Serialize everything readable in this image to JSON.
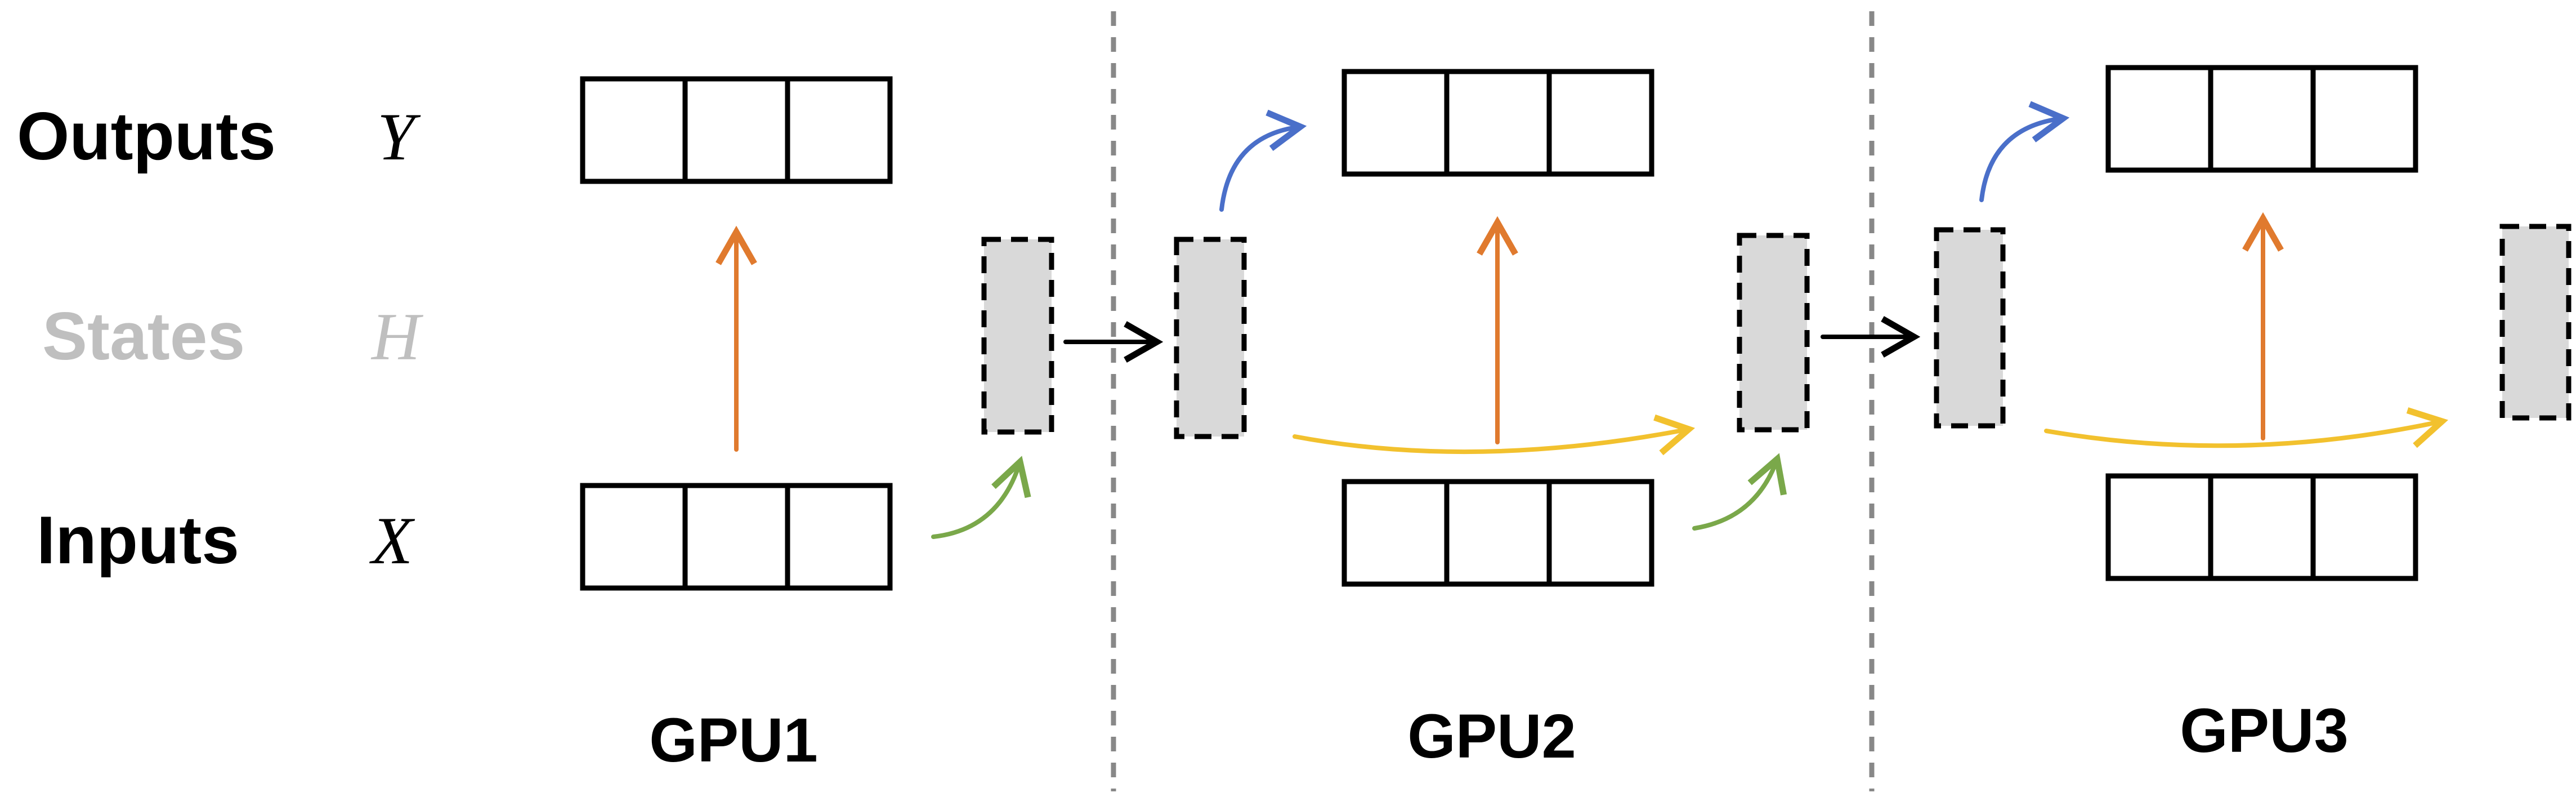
{
  "rows": {
    "outputs": {
      "label": "Outputs",
      "var": "Y"
    },
    "states": {
      "label": "States",
      "var": "H"
    },
    "inputs": {
      "label": "Inputs",
      "var": "X"
    }
  },
  "gpus": [
    {
      "label": "GPU1"
    },
    {
      "label": "GPU2"
    },
    {
      "label": "GPU3"
    }
  ],
  "colors": {
    "text": "#000000",
    "states_text": "#bfbfbf",
    "state_fill": "#d9d9d9",
    "output_arrow": "#e07a2e",
    "state_update_arrow": "#f2c12e",
    "input_to_state_arrow": "#7aa84a",
    "state_to_output_arrow": "#4a6fc9",
    "transfer_arrow": "#000000",
    "divider": "#888888"
  }
}
